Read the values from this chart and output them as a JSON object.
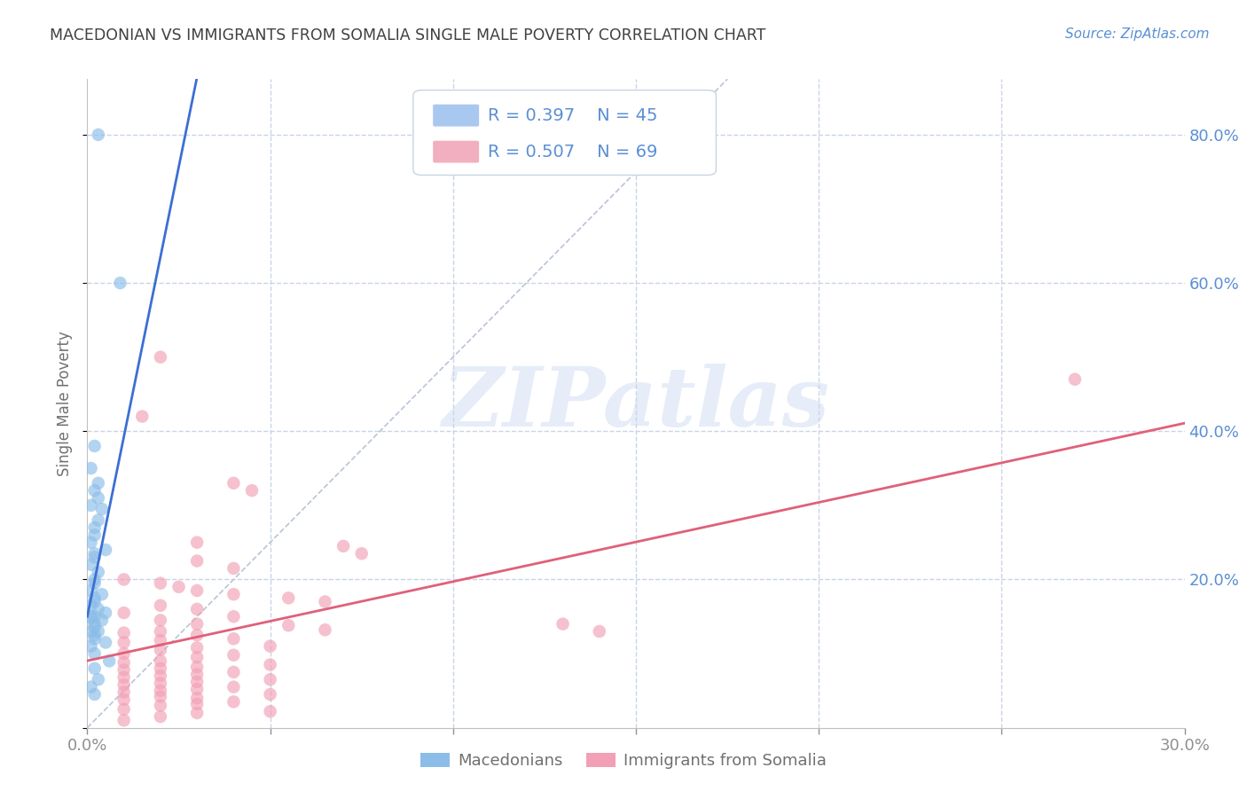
{
  "title": "MACEDONIAN VS IMMIGRANTS FROM SOMALIA SINGLE MALE POVERTY CORRELATION CHART",
  "source": "Source: ZipAtlas.com",
  "ylabel": "Single Male Poverty",
  "xlim": [
    0.0,
    0.3
  ],
  "ylim": [
    0.0,
    0.875
  ],
  "color_macedonian": "#8bbde8",
  "color_somalia": "#f2a0b5",
  "color_line_macedonian": "#3b6fd4",
  "color_line_somalia": "#e0607a",
  "color_diag": "#b8c4d8",
  "R_macedonian": 0.397,
  "N_macedonian": 45,
  "R_somalia": 0.507,
  "N_somalia": 69,
  "macedonian_x": [
    0.003,
    0.009,
    0.002,
    0.001,
    0.003,
    0.002,
    0.003,
    0.001,
    0.004,
    0.003,
    0.002,
    0.002,
    0.001,
    0.005,
    0.002,
    0.002,
    0.001,
    0.003,
    0.002,
    0.002,
    0.001,
    0.004,
    0.002,
    0.002,
    0.001,
    0.003,
    0.005,
    0.001,
    0.002,
    0.001,
    0.004,
    0.002,
    0.002,
    0.001,
    0.003,
    0.002,
    0.002,
    0.005,
    0.001,
    0.002,
    0.006,
    0.002,
    0.003,
    0.001,
    0.002
  ],
  "macedonian_y": [
    0.8,
    0.6,
    0.38,
    0.35,
    0.33,
    0.32,
    0.31,
    0.3,
    0.295,
    0.28,
    0.27,
    0.26,
    0.25,
    0.24,
    0.235,
    0.23,
    0.22,
    0.21,
    0.2,
    0.195,
    0.185,
    0.18,
    0.175,
    0.17,
    0.165,
    0.16,
    0.155,
    0.15,
    0.15,
    0.148,
    0.145,
    0.14,
    0.135,
    0.13,
    0.13,
    0.125,
    0.12,
    0.115,
    0.11,
    0.1,
    0.09,
    0.08,
    0.065,
    0.055,
    0.045
  ],
  "somalia_x": [
    0.27,
    0.02,
    0.015,
    0.04,
    0.045,
    0.03,
    0.07,
    0.075,
    0.03,
    0.04,
    0.01,
    0.02,
    0.025,
    0.03,
    0.04,
    0.055,
    0.065,
    0.02,
    0.03,
    0.01,
    0.04,
    0.02,
    0.03,
    0.055,
    0.065,
    0.02,
    0.01,
    0.03,
    0.04,
    0.02,
    0.01,
    0.05,
    0.03,
    0.02,
    0.01,
    0.04,
    0.03,
    0.02,
    0.01,
    0.05,
    0.03,
    0.02,
    0.01,
    0.04,
    0.03,
    0.02,
    0.01,
    0.05,
    0.03,
    0.02,
    0.01,
    0.04,
    0.03,
    0.02,
    0.01,
    0.05,
    0.13,
    0.14,
    0.02,
    0.03,
    0.01,
    0.04,
    0.03,
    0.02,
    0.01,
    0.05,
    0.03,
    0.02,
    0.01
  ],
  "somalia_y": [
    0.47,
    0.5,
    0.42,
    0.33,
    0.32,
    0.25,
    0.245,
    0.235,
    0.225,
    0.215,
    0.2,
    0.195,
    0.19,
    0.185,
    0.18,
    0.175,
    0.17,
    0.165,
    0.16,
    0.155,
    0.15,
    0.145,
    0.14,
    0.138,
    0.132,
    0.13,
    0.128,
    0.125,
    0.12,
    0.118,
    0.115,
    0.11,
    0.108,
    0.105,
    0.1,
    0.098,
    0.095,
    0.09,
    0.088,
    0.085,
    0.082,
    0.08,
    0.078,
    0.075,
    0.072,
    0.07,
    0.068,
    0.065,
    0.062,
    0.06,
    0.058,
    0.055,
    0.052,
    0.05,
    0.048,
    0.045,
    0.14,
    0.13,
    0.042,
    0.04,
    0.038,
    0.035,
    0.032,
    0.03,
    0.025,
    0.022,
    0.02,
    0.015,
    0.01
  ],
  "watermark": "ZIPatlas",
  "background_color": "#ffffff",
  "grid_color": "#c8d4e8",
  "tick_color": "#5a8fd4",
  "title_color": "#404040",
  "legend_box_color_macedonian": "#a8c8f0",
  "legend_box_color_somalia": "#f2afc0"
}
